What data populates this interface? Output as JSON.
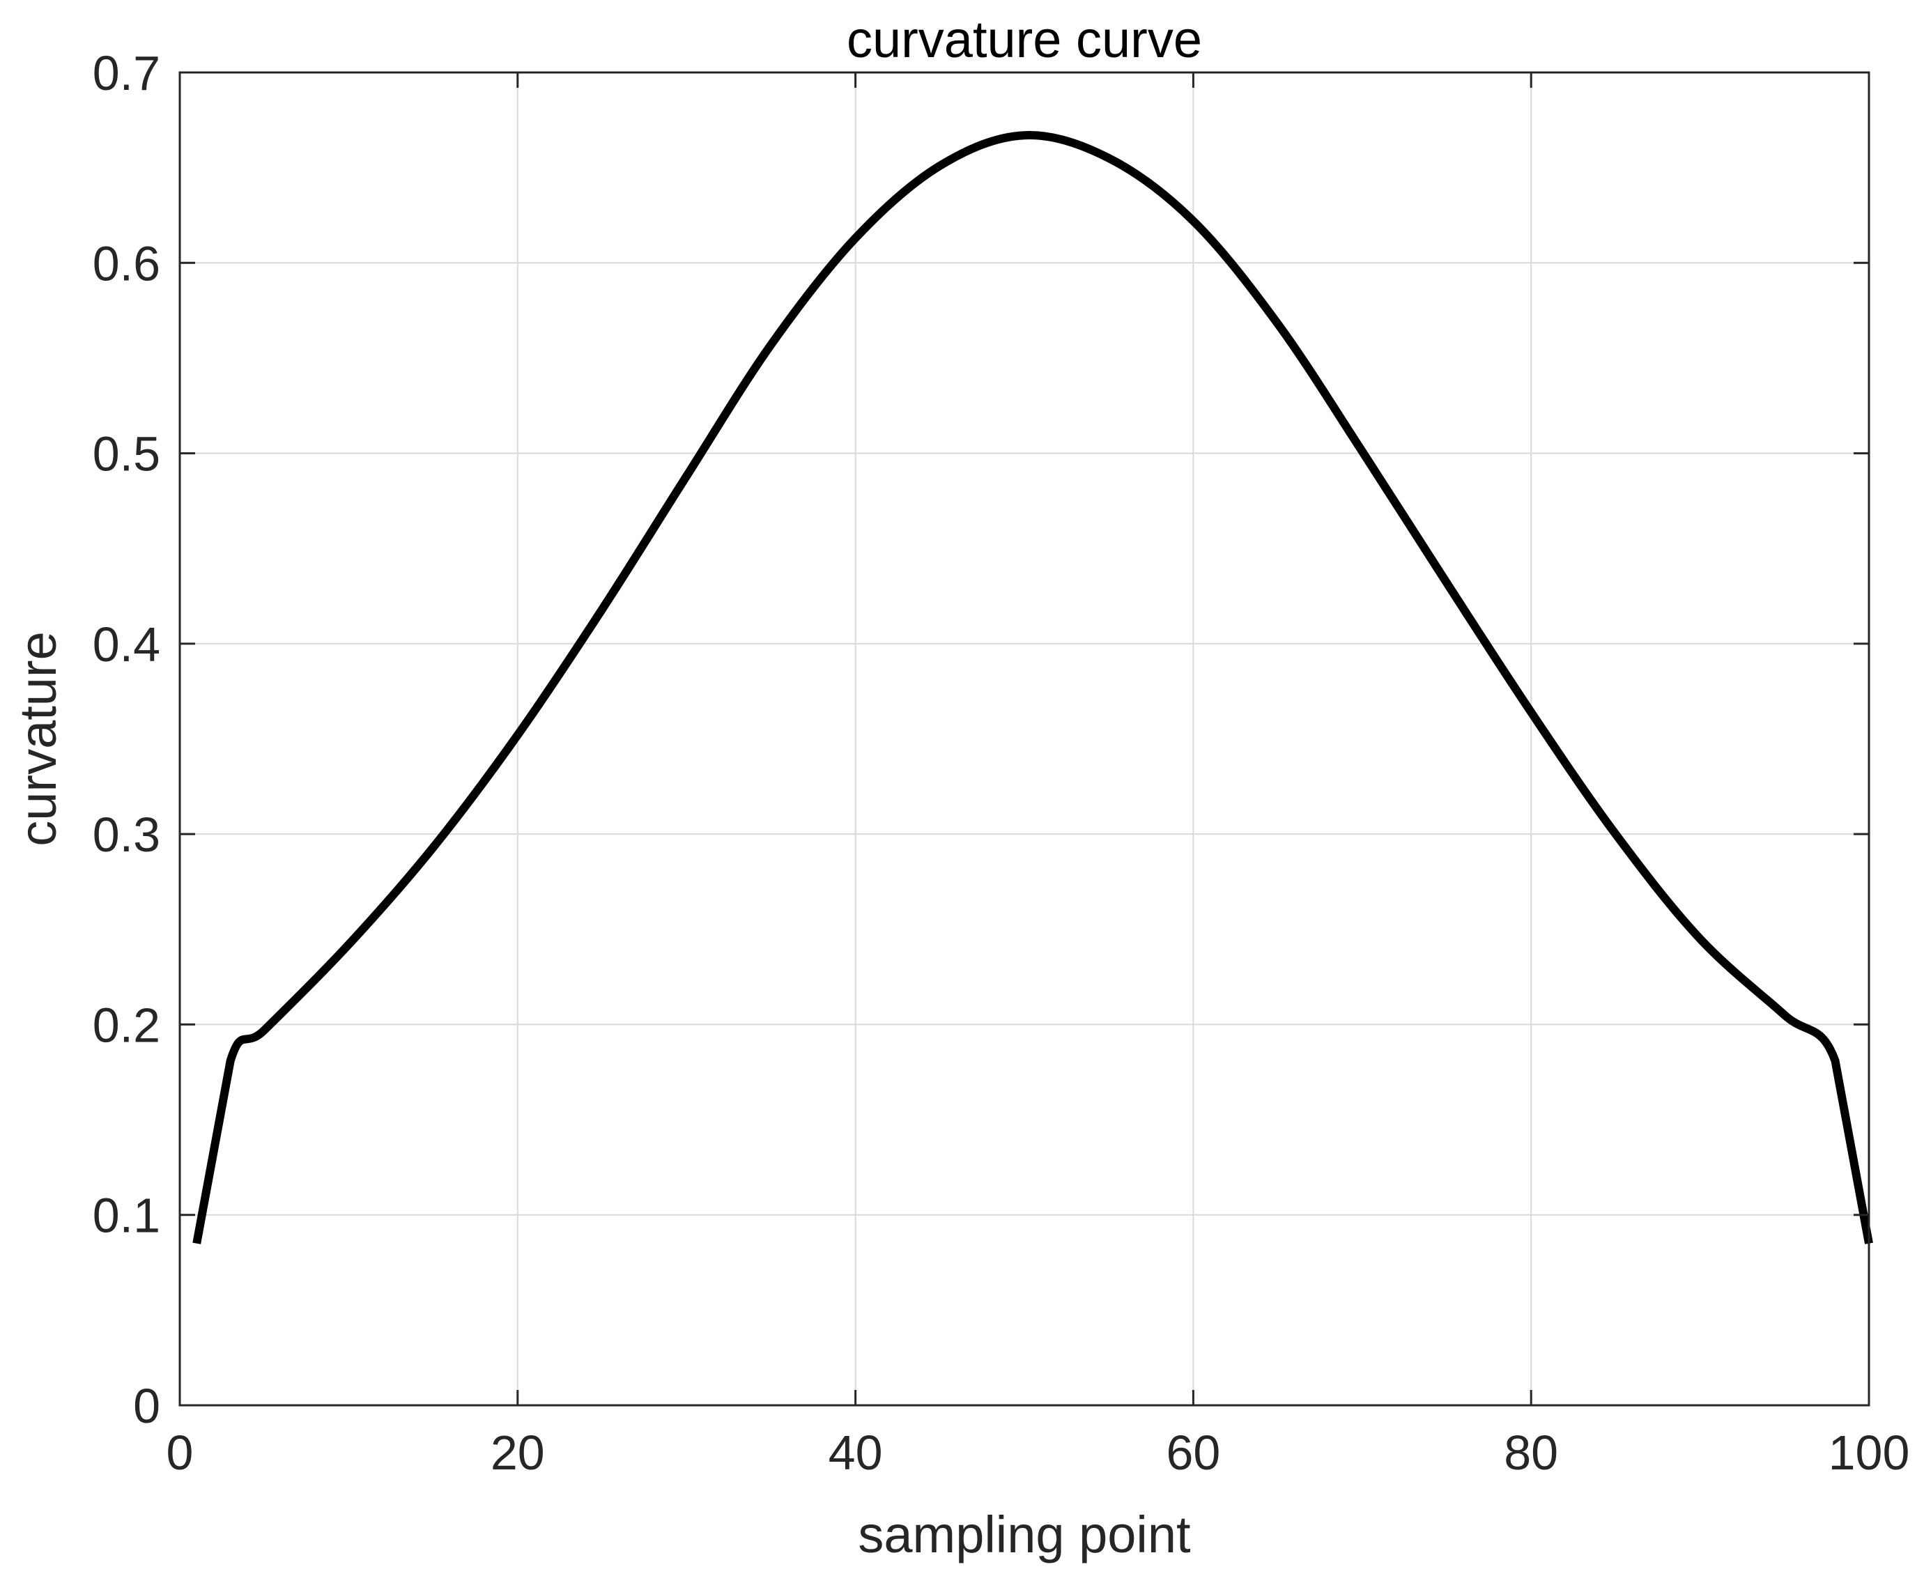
{
  "chart_data": {
    "type": "line",
    "title": "curvature curve",
    "xlabel": "sampling point",
    "ylabel": "curvature",
    "xlim": [
      0,
      100
    ],
    "ylim": [
      0,
      0.7
    ],
    "xticks": [
      0,
      20,
      40,
      60,
      80,
      100
    ],
    "xtick_labels": [
      "0",
      "20",
      "40",
      "60",
      "80",
      "100"
    ],
    "yticks": [
      0,
      0.1,
      0.2,
      0.3,
      0.4,
      0.5,
      0.6,
      0.7
    ],
    "ytick_labels": [
      "0",
      "0.1",
      "0.2",
      "0.3",
      "0.4",
      "0.5",
      "0.6",
      "0.7"
    ],
    "grid": true,
    "colors": {
      "line": "#000000",
      "grid": "#d9d9d9",
      "axes": "#262626"
    },
    "series": [
      {
        "x": [
          1,
          3,
          5,
          10,
          15,
          20,
          25,
          30,
          35,
          40,
          45,
          50,
          55,
          60,
          65,
          70,
          75,
          80,
          85,
          90,
          95,
          98,
          100
        ],
        "values": [
          0.085,
          0.181,
          0.197,
          0.242,
          0.293,
          0.352,
          0.418,
          0.488,
          0.557,
          0.613,
          0.651,
          0.667,
          0.655,
          0.622,
          0.568,
          0.501,
          0.432,
          0.364,
          0.3,
          0.245,
          0.205,
          0.181,
          0.085
        ]
      }
    ]
  }
}
